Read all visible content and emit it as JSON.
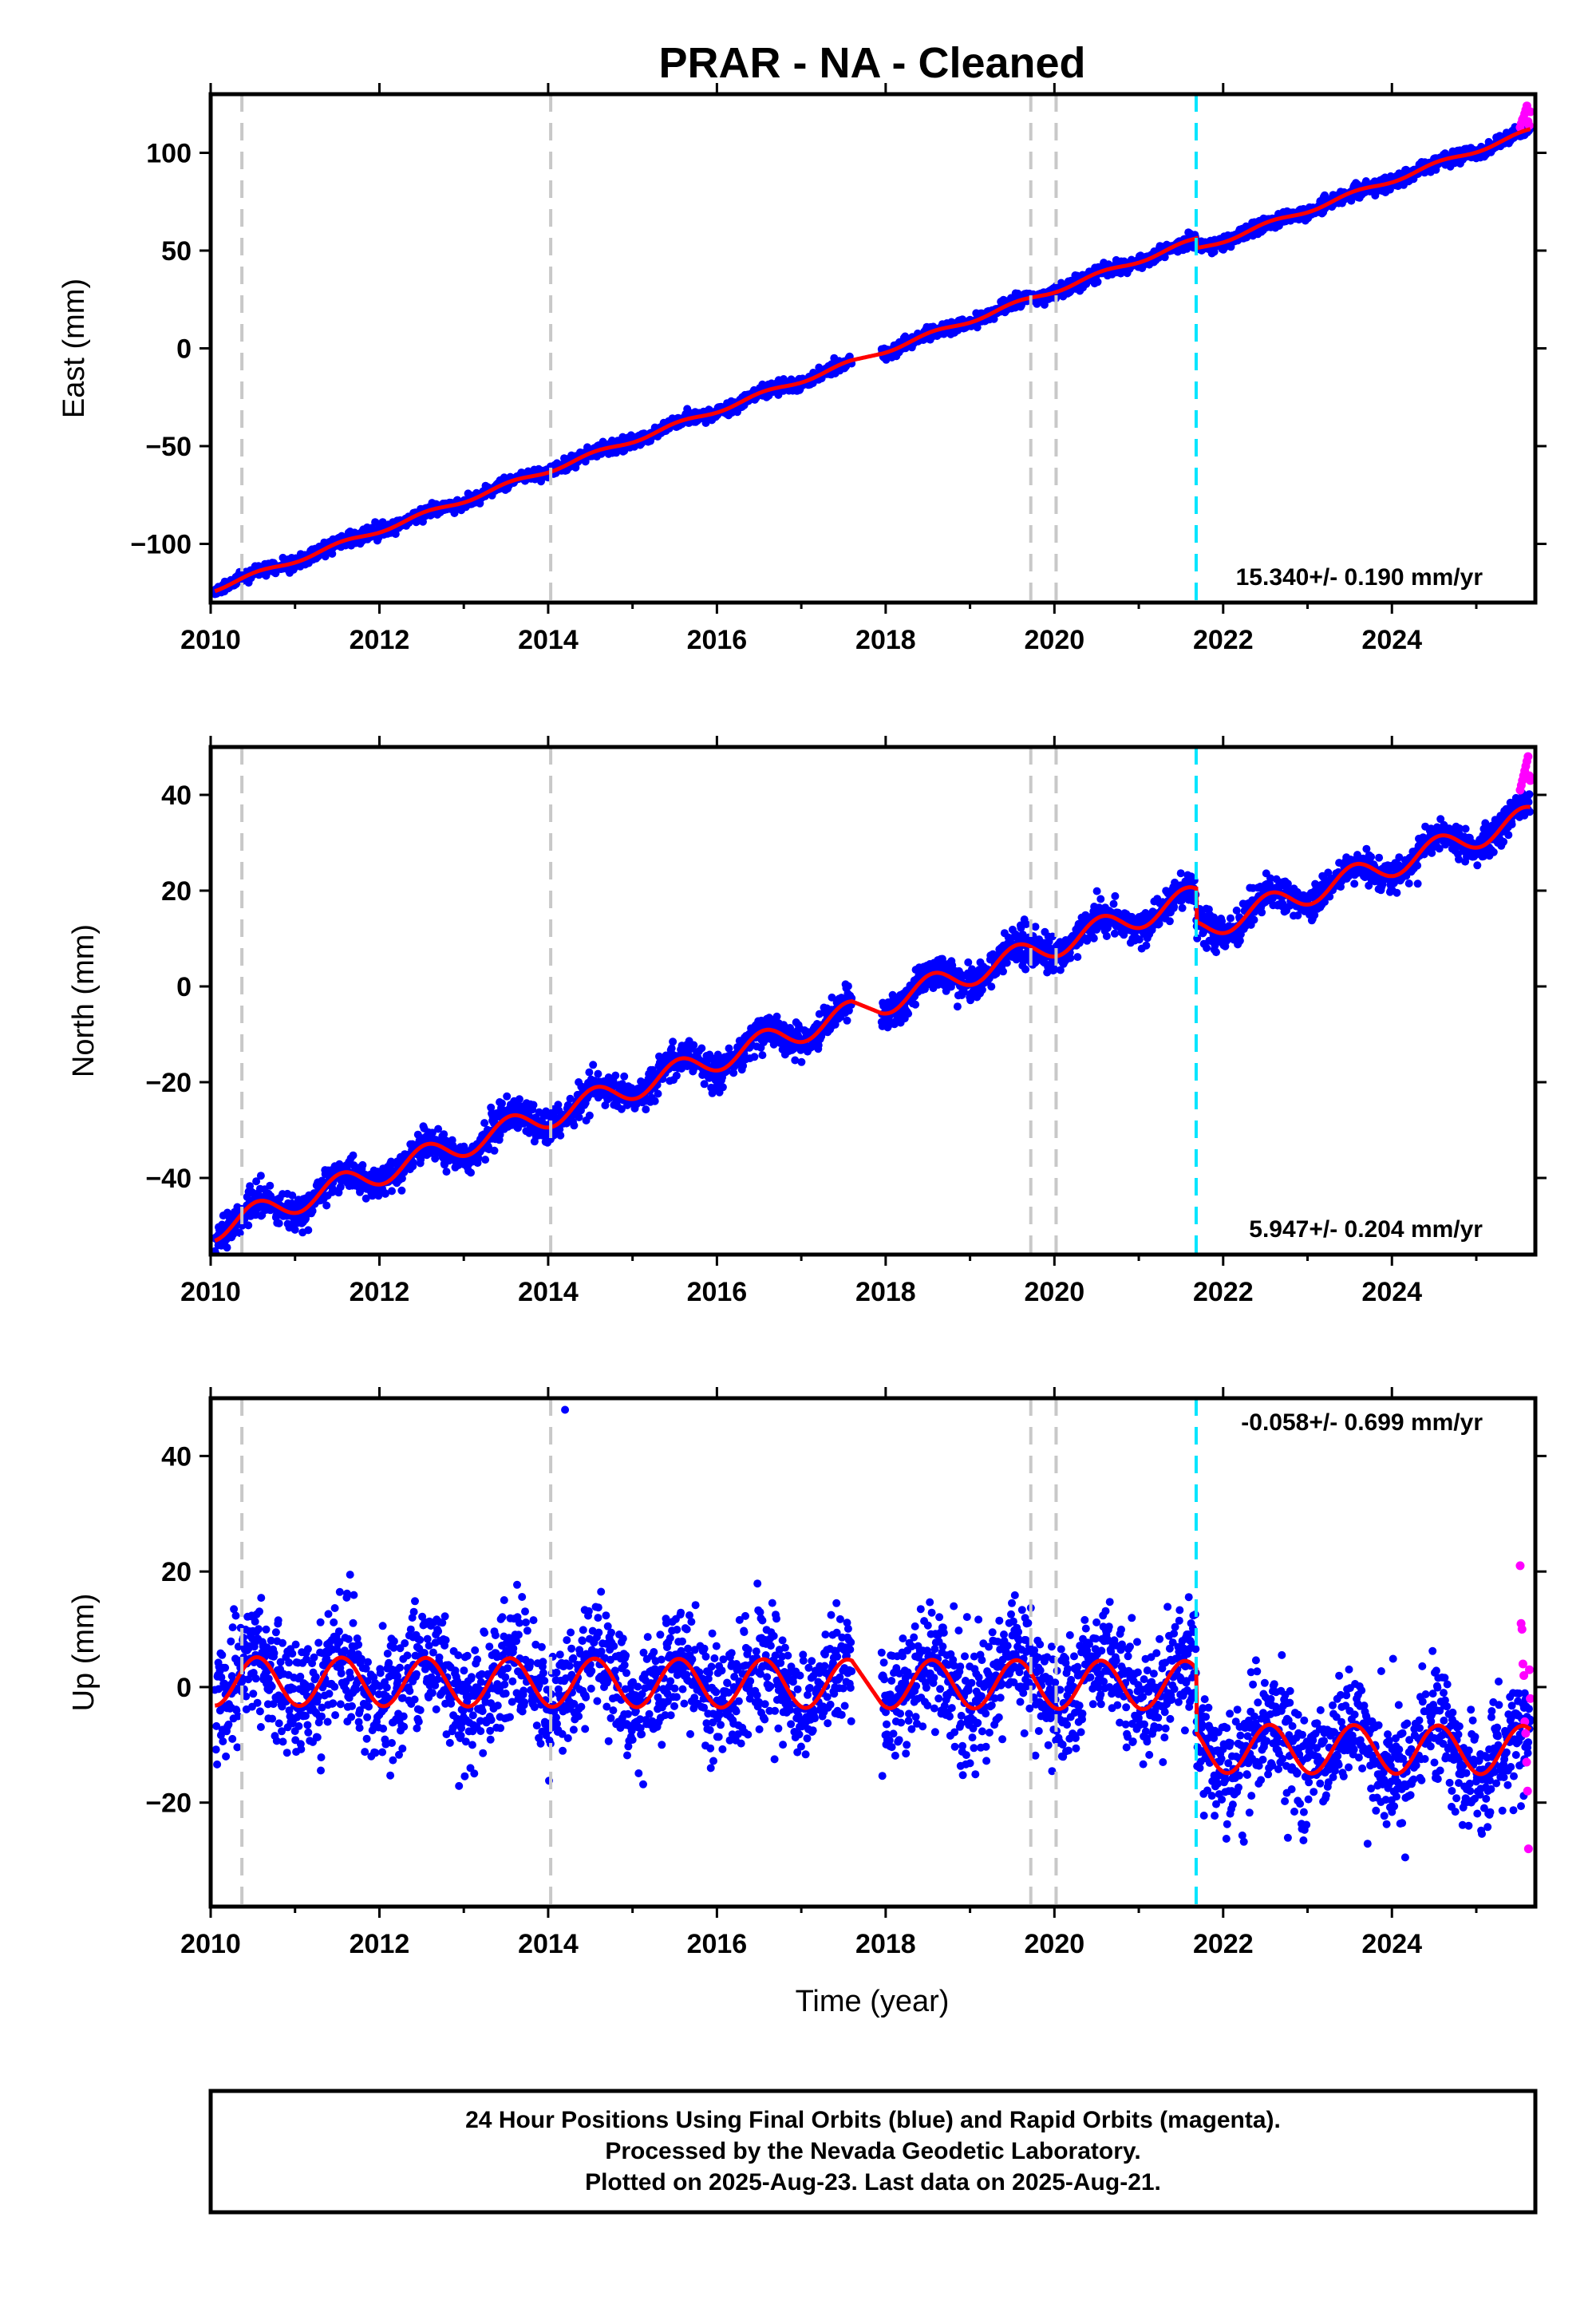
{
  "title": "PRAR  - NA - Cleaned",
  "xlabel": "Time (year)",
  "colors": {
    "final": "#0000ff",
    "rapid": "#ff00ff",
    "model": "#ff0000",
    "equipment_change": "#c8c8c8",
    "earthquake": "#00e5ff"
  },
  "events": {
    "equipment_change_years": [
      2010.37,
      2014.03,
      2019.72,
      2020.02
    ],
    "earthquake_years": [
      2021.68
    ]
  },
  "chart_data": [
    {
      "type": "scatter",
      "component": "east",
      "ylabel": "East (mm)",
      "xlim": [
        2010.0,
        2025.7
      ],
      "ylim": [
        -130,
        130
      ],
      "xticks": [
        "2010",
        "2012",
        "2014",
        "2016",
        "2018",
        "2020",
        "2022",
        "2024"
      ],
      "yticks": [
        "−100",
        "−50",
        "0",
        "50",
        "100"
      ],
      "rate_text": "15.340+/- 0.190 mm/yr",
      "model": {
        "start_year": 2010.05,
        "end_year": 2025.64,
        "y_at_start": -123,
        "rate_mm_per_yr": 15.34,
        "annual_amplitude": 1.2,
        "offsets": [
          {
            "year": 2021.68,
            "value": -5
          }
        ],
        "gaps": [
          [
            2017.6,
            2017.95
          ]
        ],
        "scatter": 1.6,
        "seed": 11
      },
      "rapid_points": {
        "start_year": 2025.52,
        "end_year": 2025.64,
        "values": [
          113,
          115,
          117,
          118,
          120,
          122,
          124,
          116,
          114,
          121
        ]
      }
    },
    {
      "type": "scatter",
      "component": "north",
      "ylabel": "North (mm)",
      "xlim": [
        2010.0,
        2025.7
      ],
      "ylim": [
        -56,
        50
      ],
      "xticks": [
        "2010",
        "2012",
        "2014",
        "2016",
        "2018",
        "2020",
        "2022",
        "2024"
      ],
      "yticks": [
        "−40",
        "−20",
        "0",
        "20",
        "40"
      ],
      "rate_text": "5.947+/- 0.204 mm/yr",
      "model": {
        "start_year": 2010.05,
        "end_year": 2025.64,
        "y_at_start": -50.5,
        "rate_mm_per_yr": 5.95,
        "annual_amplitude": 2.6,
        "offsets": [
          {
            "year": 2021.68,
            "value": -7
          }
        ],
        "gaps": [
          [
            2017.6,
            2017.95
          ]
        ],
        "scatter": 1.7,
        "seed": 23
      },
      "rapid_points": {
        "start_year": 2025.52,
        "end_year": 2025.64,
        "values": [
          41,
          42,
          43,
          44,
          45,
          46,
          47,
          48,
          44,
          43
        ]
      }
    },
    {
      "type": "scatter",
      "component": "up",
      "ylabel": "Up (mm)",
      "xlim": [
        2010.0,
        2025.7
      ],
      "ylim": [
        -38,
        50
      ],
      "xticks": [
        "2010",
        "2012",
        "2014",
        "2016",
        "2018",
        "2020",
        "2022",
        "2024"
      ],
      "yticks": [
        "−20",
        "0",
        "20",
        "40"
      ],
      "rate_text": "-0.058+/- 0.699 mm/yr",
      "model": {
        "start_year": 2010.05,
        "end_year": 2025.64,
        "y_at_start": 1,
        "rate_mm_per_yr": -0.058,
        "annual_amplitude": 4.2,
        "offsets": [
          {
            "year": 2021.68,
            "value": -11
          }
        ],
        "gaps": [
          [
            2017.6,
            2017.95
          ]
        ],
        "scatter": 5.0,
        "seed": 37
      },
      "outliers": [
        {
          "x": 2014.2,
          "y": 48
        }
      ],
      "rapid_points": {
        "start_year": 2025.52,
        "end_year": 2025.64,
        "values": [
          21,
          11,
          10,
          4,
          2,
          -6,
          -8,
          -13,
          -18,
          -28,
          3,
          -2
        ]
      }
    }
  ],
  "footer": {
    "line1": "24 Hour Positions Using Final Orbits (blue) and Rapid Orbits (magenta).",
    "line2": "Processed by the Nevada Geodetic Laboratory.",
    "line3": "Plotted on 2025-Aug-23. Last data on 2025-Aug-21."
  }
}
